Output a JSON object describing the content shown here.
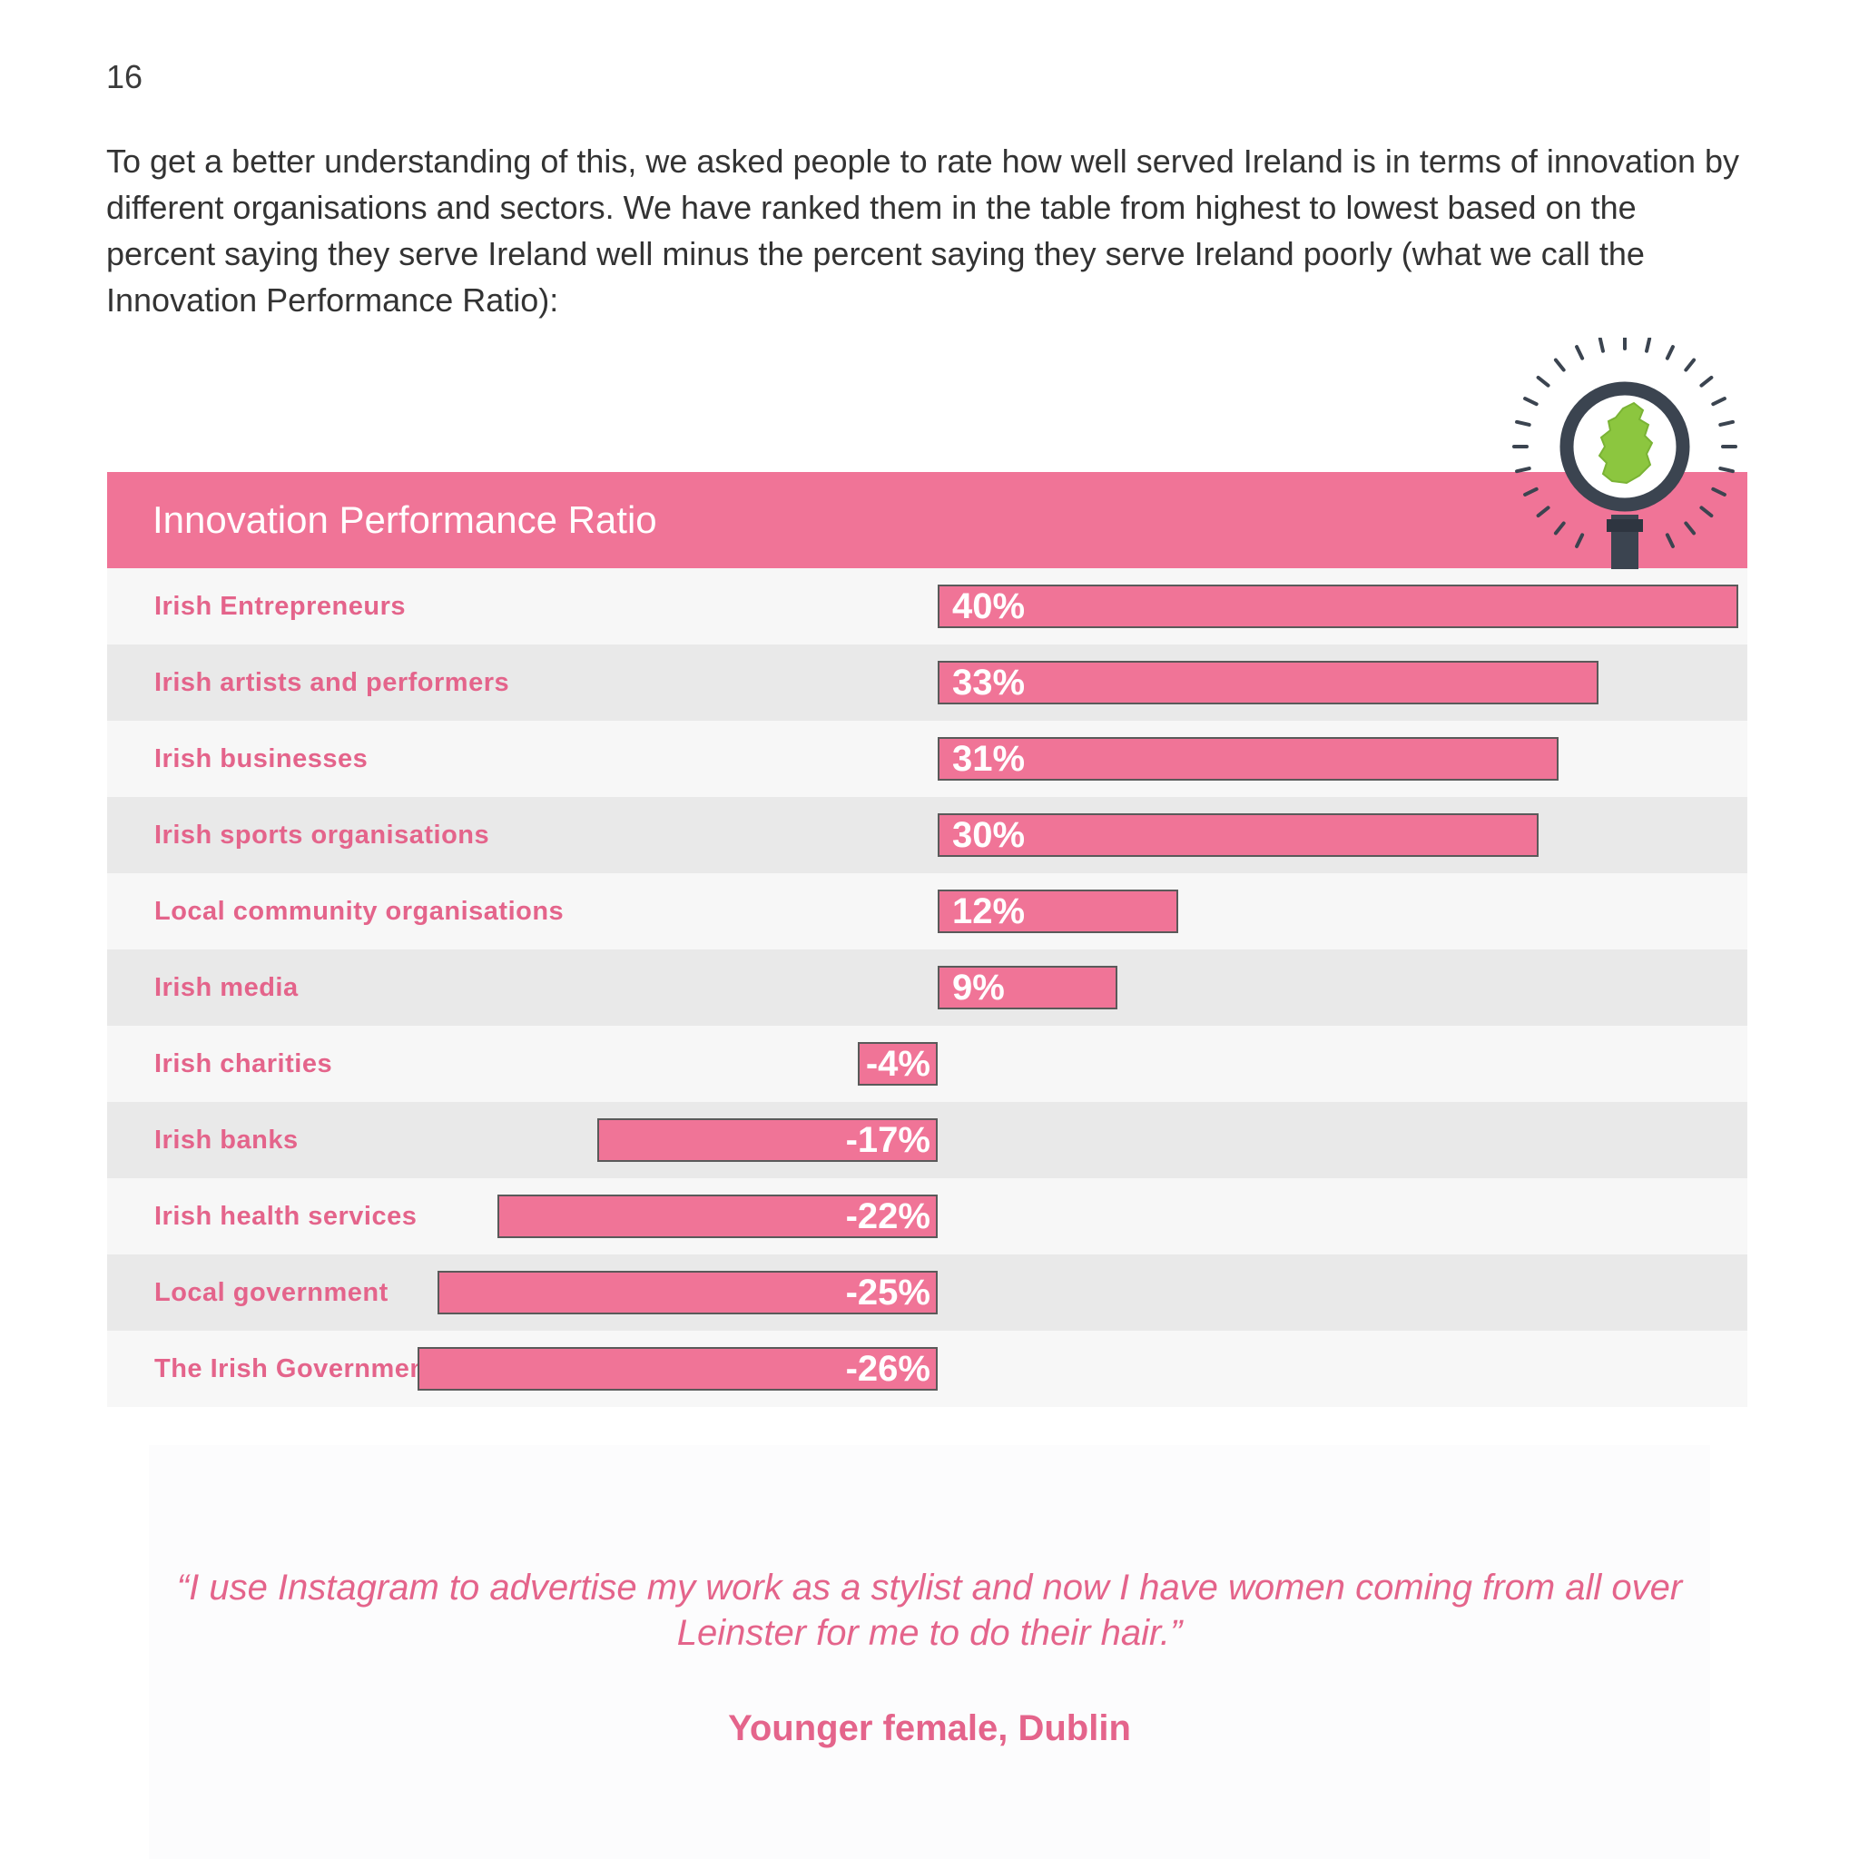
{
  "page": {
    "number": "16",
    "intro": "To get a better understanding of this, we asked people to rate how well served Ireland is in terms of innovation by different organisations and sectors. We have ranked them in the table from highest to lowest based on the percent saying they serve Ireland well minus the percent saying they serve Ireland poorly (what we call the Innovation Performance Ratio):"
  },
  "chart_data": {
    "type": "bar",
    "orientation": "horizontal",
    "title": "Innovation Performance Ratio",
    "categories": [
      "Irish Entrepreneurs",
      "Irish artists and performers",
      "Irish businesses",
      "Irish sports organisations",
      "Local community organisations",
      "Irish media",
      "Irish charities",
      "Irish banks",
      "Irish health services",
      "Local government",
      "The Irish Government"
    ],
    "values": [
      40,
      33,
      31,
      30,
      12,
      9,
      -4,
      -17,
      -22,
      -25,
      -26
    ],
    "value_labels": [
      "40%",
      "33%",
      "31%",
      "30%",
      "12%",
      "9%",
      "-4%",
      "-17%",
      "-22%",
      "-25%",
      "-26%"
    ],
    "unit": "%",
    "xlim": [
      -40,
      40
    ],
    "bar_color": "#f07497",
    "grid": false,
    "legend": "none"
  },
  "colors": {
    "accent": "#f07497",
    "label_text": "#e4648b",
    "icon_green": "#8cc63f",
    "icon_dark": "#3b4450"
  },
  "icon": "magnifying-glass-ireland-icon",
  "quote": {
    "text": "“I use Instagram to advertise my work as a stylist and now I have women coming from all over Leinster for me to do their hair.”",
    "attribution": "Younger female, Dublin"
  }
}
